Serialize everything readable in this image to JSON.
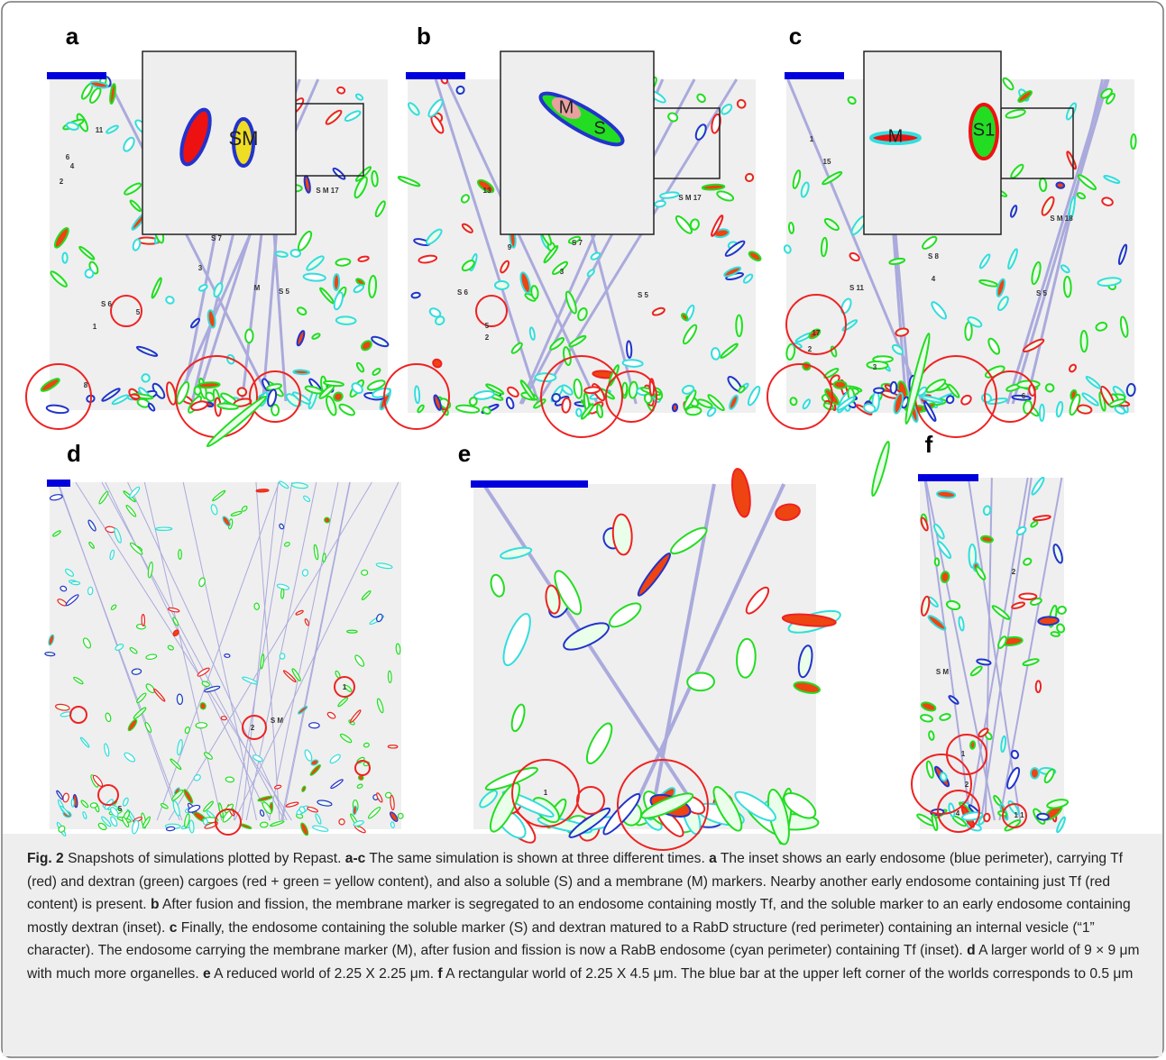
{
  "panels": [
    {
      "letter": "a",
      "inset": [
        "SM"
      ],
      "labels": [
        "11",
        "6",
        "4",
        "2",
        "S 7",
        "3",
        "S 5",
        "M",
        "S 6",
        "5",
        "1",
        "S M 17",
        "8"
      ]
    },
    {
      "letter": "b",
      "inset": [
        "M",
        "S"
      ],
      "labels": [
        "13",
        "9",
        "S 7",
        "3",
        "S 5",
        "S 6",
        "5",
        "2",
        "S M 17"
      ]
    },
    {
      "letter": "c",
      "inset": [
        "M",
        "S1"
      ],
      "labels": [
        "15",
        "1",
        "S 8",
        "4",
        "S 11",
        "17",
        "2",
        "S M 18",
        "S 5",
        "3",
        "6"
      ]
    },
    {
      "letter": "d",
      "inset": [],
      "labels": [
        "1",
        "2",
        "S M",
        "5"
      ]
    },
    {
      "letter": "e",
      "inset": [],
      "labels": [
        "1"
      ]
    },
    {
      "letter": "f",
      "inset": [],
      "labels": [
        "2",
        "S M",
        "1",
        "2",
        "4",
        "1 1"
      ]
    }
  ],
  "caption": [
    {
      "text": "Fig. 2",
      "bold": true
    },
    {
      "text": " Snapshots of simulations plotted by Repast. "
    },
    {
      "text": "a-c",
      "bold": true
    },
    {
      "text": " The same simulation is shown at three different times. "
    },
    {
      "text": "a",
      "bold": true
    },
    {
      "text": " The inset shows an early endosome (blue perimeter), carrying Tf (red) and dextran (green) cargoes (red + green = yellow content), and also a soluble (S) and a membrane (M) markers. Nearby another early endosome containing just Tf (red content) is present. "
    },
    {
      "text": "b",
      "bold": true
    },
    {
      "text": " After fusion and fission, the membrane marker is segregated to an endosome containing mostly Tf, and the soluble marker to an early endosome containing mostly dextran (inset). "
    },
    {
      "text": "c",
      "bold": true
    },
    {
      "text": " Finally, the endosome containing the soluble marker (S) and dextran matured to a RabD structure (red perimeter) containing an internal vesicle (“1” character). The endosome carrying the membrane marker (M), after fusion and fission is now a RabB endosome (cyan perimeter) containing Tf (inset). "
    },
    {
      "text": "d",
      "bold": true
    },
    {
      "text": " A larger world of 9 × 9 μm with much more organelles. "
    },
    {
      "text": "e",
      "bold": true
    },
    {
      "text": " A reduced world of 2.25 X 2.25 μm. "
    },
    {
      "text": "f",
      "bold": true
    },
    {
      "text": " A rectangular world of 2.25 X 4.5 μm. The blue bar at the upper left corner of the worlds corresponds to 0.5 μm"
    }
  ]
}
